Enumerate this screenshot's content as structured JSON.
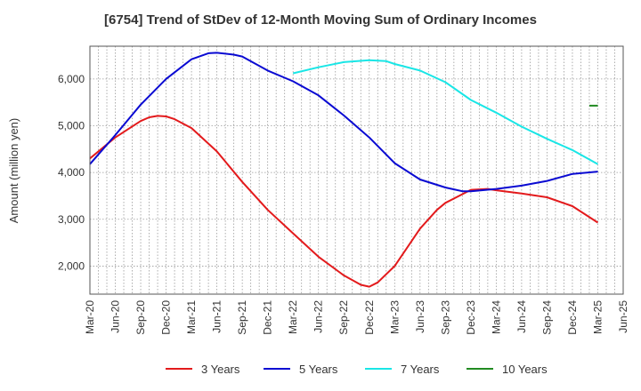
{
  "chart_data": {
    "type": "line",
    "title": "[6754]  Trend of StDev of 12-Month Moving Sum of Ordinary Incomes",
    "xlabel": "",
    "ylabel": "Amount (million yen)",
    "ylim": [
      1400,
      6700
    ],
    "yticks": [
      2000,
      3000,
      4000,
      5000,
      6000
    ],
    "ytick_labels": [
      "2,000",
      "3,000",
      "4,000",
      "5,000",
      "6,000"
    ],
    "xlim": [
      "Mar-20",
      "Jun-25"
    ],
    "xtick_labels": [
      "Mar-20",
      "Jun-20",
      "Sep-20",
      "Dec-20",
      "Mar-21",
      "Jun-21",
      "Sep-21",
      "Dec-21",
      "Mar-22",
      "Jun-22",
      "Sep-22",
      "Dec-22",
      "Mar-23",
      "Jun-23",
      "Sep-23",
      "Dec-23",
      "Mar-24",
      "Jun-24",
      "Sep-24",
      "Dec-24",
      "Mar-25",
      "Jun-25"
    ],
    "grid": true,
    "legend_position": "bottom",
    "series": [
      {
        "name": "3 Years",
        "color": "#e31a1c",
        "points": [
          [
            "Mar-20",
            4300
          ],
          [
            "Jun-20",
            4750
          ],
          [
            "Sep-20",
            5100
          ],
          [
            "Oct-20",
            5180
          ],
          [
            "Nov-20",
            5210
          ],
          [
            "Dec-20",
            5200
          ],
          [
            "Jan-21",
            5140
          ],
          [
            "Mar-21",
            4950
          ],
          [
            "Jun-21",
            4450
          ],
          [
            "Sep-21",
            3800
          ],
          [
            "Dec-21",
            3200
          ],
          [
            "Mar-22",
            2700
          ],
          [
            "Jun-22",
            2200
          ],
          [
            "Sep-22",
            1800
          ],
          [
            "Nov-22",
            1600
          ],
          [
            "Dec-22",
            1560
          ],
          [
            "Jan-23",
            1650
          ],
          [
            "Mar-23",
            2000
          ],
          [
            "Jun-23",
            2800
          ],
          [
            "Aug-23",
            3200
          ],
          [
            "Sep-23",
            3350
          ],
          [
            "Dec-23",
            3630
          ],
          [
            "Feb-24",
            3650
          ],
          [
            "Mar-24",
            3620
          ],
          [
            "Jun-24",
            3550
          ],
          [
            "Sep-24",
            3470
          ],
          [
            "Dec-24",
            3280
          ],
          [
            "Mar-25",
            2930
          ]
        ]
      },
      {
        "name": "5 Years",
        "color": "#0a0ad2",
        "points": [
          [
            "Mar-20",
            4180
          ],
          [
            "Jun-20",
            4800
          ],
          [
            "Sep-20",
            5450
          ],
          [
            "Dec-20",
            6000
          ],
          [
            "Mar-21",
            6420
          ],
          [
            "May-21",
            6550
          ],
          [
            "Jun-21",
            6560
          ],
          [
            "Aug-21",
            6520
          ],
          [
            "Sep-21",
            6480
          ],
          [
            "Dec-21",
            6180
          ],
          [
            "Mar-22",
            5950
          ],
          [
            "Jun-22",
            5650
          ],
          [
            "Sep-22",
            5220
          ],
          [
            "Dec-22",
            4750
          ],
          [
            "Mar-23",
            4200
          ],
          [
            "Jun-23",
            3850
          ],
          [
            "Sep-23",
            3680
          ],
          [
            "Nov-23",
            3600
          ],
          [
            "Dec-23",
            3600
          ],
          [
            "Mar-24",
            3650
          ],
          [
            "Jun-24",
            3720
          ],
          [
            "Sep-24",
            3820
          ],
          [
            "Dec-24",
            3970
          ],
          [
            "Mar-25",
            4020
          ]
        ]
      },
      {
        "name": "7 Years",
        "color": "#19e6e6",
        "points": [
          [
            "Mar-22",
            6120
          ],
          [
            "Jun-22",
            6250
          ],
          [
            "Sep-22",
            6360
          ],
          [
            "Dec-22",
            6400
          ],
          [
            "Feb-23",
            6380
          ],
          [
            "Mar-23",
            6320
          ],
          [
            "Jun-23",
            6180
          ],
          [
            "Sep-23",
            5930
          ],
          [
            "Dec-23",
            5550
          ],
          [
            "Mar-24",
            5280
          ],
          [
            "Jun-24",
            4980
          ],
          [
            "Sep-24",
            4720
          ],
          [
            "Dec-24",
            4480
          ],
          [
            "Mar-25",
            4180
          ]
        ]
      },
      {
        "name": "10 Years",
        "color": "#228b22",
        "points": [
          [
            "Feb-25",
            5430
          ],
          [
            "Mar-25",
            5430
          ]
        ]
      }
    ]
  }
}
